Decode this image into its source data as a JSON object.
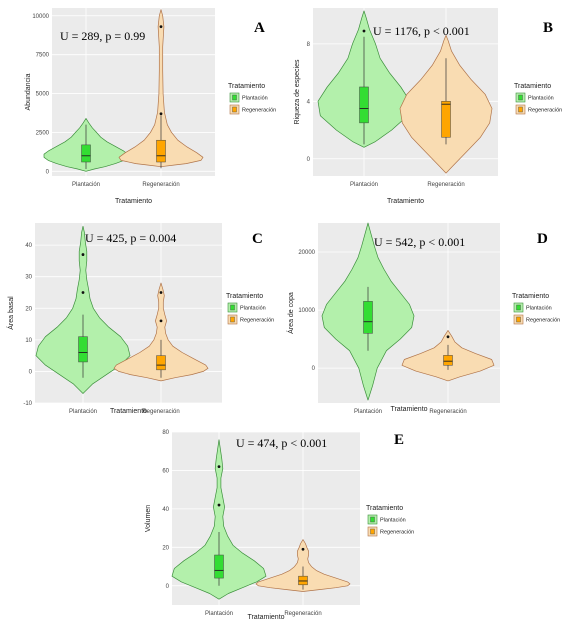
{
  "legend": {
    "title": "Tratamiento",
    "items": [
      "Plantación",
      "Regeneración"
    ]
  },
  "colors": {
    "plantacion": "#33dd33",
    "regeneracion": "#ffa500",
    "plantacion_fill": "#b3f0ab",
    "regeneracion_fill": "#f9dcb2",
    "panel_bg": "#ebebeb",
    "grid": "#ffffff"
  },
  "chart_data": [
    {
      "panel": "A",
      "type": "violin",
      "annotation": "U = 289, p = 0.99",
      "xlabel": "Tratamiento",
      "ylabel": "Abundancia",
      "categories": [
        "Plantación",
        "Regeneración"
      ],
      "yticks": [
        0,
        2500,
        5000,
        7500,
        10000
      ],
      "ylim": [
        -300,
        10500
      ],
      "series": [
        {
          "median": 1000,
          "q1": 600,
          "q3": 1700,
          "whisker": [
            150,
            3000
          ],
          "outliers": [],
          "violin_y": [
            0,
            150,
            300,
            500,
            700,
            900,
            1100,
            1300,
            1600,
            1900,
            2200,
            2500,
            2800,
            3100,
            3400
          ],
          "violin_d": [
            0,
            0.2,
            0.45,
            0.7,
            0.9,
            1.0,
            1.0,
            0.9,
            0.7,
            0.5,
            0.35,
            0.25,
            0.15,
            0.07,
            0
          ]
        },
        {
          "median": 1000,
          "q1": 600,
          "q3": 2000,
          "whisker": [
            200,
            3600
          ],
          "outliers": [
            9300,
            3700
          ],
          "violin_y": [
            300,
            400,
            500,
            700,
            900,
            1200,
            1600,
            2000,
            2500,
            3000,
            3800,
            5000,
            6500,
            8000,
            9300,
            10000,
            10400
          ],
          "violin_d": [
            0,
            0.3,
            0.6,
            0.95,
            1.0,
            0.85,
            0.6,
            0.4,
            0.25,
            0.15,
            0.08,
            0.05,
            0.04,
            0.04,
            0.07,
            0.04,
            0
          ]
        }
      ]
    },
    {
      "panel": "B",
      "type": "violin",
      "annotation": "U = 1176, p < 0.001",
      "xlabel": "Tratamiento",
      "ylabel": "Riqueza de especies",
      "categories": [
        "Plantación",
        "Regeneración"
      ],
      "yticks": [
        0,
        4,
        8
      ],
      "ylim": [
        -1.2,
        10.5
      ],
      "series": [
        {
          "median": 3.5,
          "q1": 2.5,
          "q3": 5.0,
          "whisker": [
            1,
            8.5
          ],
          "outliers": [
            8.9
          ],
          "violin_y": [
            0.8,
            1.2,
            2,
            3,
            4,
            5,
            6,
            7,
            8,
            9,
            9.8,
            10.3
          ],
          "violin_d": [
            0,
            0.25,
            0.6,
            0.95,
            1.0,
            0.8,
            0.55,
            0.35,
            0.25,
            0.12,
            0.05,
            0
          ]
        },
        {
          "median": 3.8,
          "q1": 1.5,
          "q3": 4.0,
          "whisker": [
            1,
            7
          ],
          "outliers": [],
          "violin_y": [
            -1,
            -0.5,
            0.5,
            1.5,
            2.5,
            3.5,
            4.5,
            5.5,
            6.5,
            7.5,
            8.2,
            8.6
          ],
          "violin_d": [
            0,
            0.15,
            0.45,
            0.75,
            0.95,
            1.0,
            0.85,
            0.55,
            0.3,
            0.12,
            0.05,
            0
          ]
        }
      ]
    },
    {
      "panel": "C",
      "type": "violin",
      "annotation": "U = 425, p = 0.004",
      "xlabel": "Tratamiento",
      "ylabel": "Área basal",
      "categories": [
        "Plantación",
        "Regeneración"
      ],
      "yticks": [
        -10,
        0,
        10,
        20,
        30,
        40
      ],
      "ylim": [
        -10,
        47
      ],
      "series": [
        {
          "median": 6,
          "q1": 3,
          "q3": 11,
          "whisker": [
            -2,
            18
          ],
          "outliers": [
            25,
            37
          ],
          "violin_y": [
            -7,
            -4,
            -1,
            2,
            5,
            8,
            11,
            14,
            17,
            20,
            23,
            26,
            29,
            32,
            35,
            38,
            41,
            44,
            46
          ],
          "violin_d": [
            0,
            0.2,
            0.5,
            0.8,
            1.0,
            0.95,
            0.8,
            0.55,
            0.35,
            0.22,
            0.15,
            0.12,
            0.08,
            0.06,
            0.08,
            0.08,
            0.05,
            0.03,
            0
          ]
        },
        {
          "median": 2,
          "q1": 0.5,
          "q3": 5,
          "whisker": [
            -2,
            10
          ],
          "outliers": [
            16,
            25
          ],
          "violin_y": [
            -3,
            -2,
            -1,
            0,
            1,
            2,
            4,
            6,
            8,
            10,
            12,
            14,
            16,
            18,
            20,
            22,
            24,
            26,
            28
          ],
          "violin_d": [
            0,
            0.3,
            0.65,
            0.9,
            1.0,
            0.95,
            0.7,
            0.45,
            0.25,
            0.15,
            0.1,
            0.08,
            0.12,
            0.08,
            0.05,
            0.05,
            0.07,
            0.04,
            0
          ]
        }
      ]
    },
    {
      "panel": "D",
      "type": "violin",
      "annotation": "U = 542, p < 0.001",
      "xlabel": "Tratamiento",
      "ylabel": "Área de copa",
      "categories": [
        "Plantación",
        "Regeneración"
      ],
      "ytick_labels": [
        "0",
        "10000",
        "20000"
      ],
      "ylim": [
        -6000,
        25000
      ],
      "series": [
        {
          "median": 8000,
          "q1": 6000,
          "q3": 11500,
          "whisker": [
            3000,
            14000
          ],
          "outliers": [],
          "violin_y": [
            -5500,
            -3000,
            0,
            3000,
            5000,
            7000,
            9000,
            11000,
            13000,
            15000,
            17000,
            19000,
            21000,
            23000,
            25000
          ],
          "violin_d": [
            0,
            0.1,
            0.2,
            0.4,
            0.7,
            0.95,
            1.0,
            0.9,
            0.7,
            0.5,
            0.35,
            0.22,
            0.14,
            0.07,
            0
          ]
        },
        {
          "median": 1200,
          "q1": 500,
          "q3": 2200,
          "whisker": [
            -300,
            4000
          ],
          "outliers": [
            5400
          ],
          "violin_y": [
            -2200,
            -1500,
            -500,
            500,
            1500,
            2500,
            3500,
            4500,
            5500,
            6500
          ],
          "violin_d": [
            0,
            0.25,
            0.7,
            1.0,
            0.95,
            0.6,
            0.3,
            0.15,
            0.08,
            0
          ]
        }
      ]
    },
    {
      "panel": "E",
      "type": "violin",
      "annotation": "U = 474, p < 0.001",
      "xlabel": "Tratamiento",
      "ylabel": "Volumen",
      "categories": [
        "Plantación",
        "Regeneración"
      ],
      "yticks": [
        0,
        20,
        40,
        60,
        80
      ],
      "ylim": [
        -10,
        80
      ],
      "series": [
        {
          "median": 8,
          "q1": 4,
          "q3": 16,
          "whisker": [
            0,
            28
          ],
          "outliers": [
            42,
            62
          ],
          "violin_y": [
            -7,
            -4,
            -1,
            2,
            5,
            9,
            13,
            17,
            21,
            26,
            31,
            36,
            41,
            46,
            51,
            56,
            61,
            66,
            71,
            76
          ],
          "violin_d": [
            0,
            0.2,
            0.5,
            0.8,
            1.0,
            0.95,
            0.75,
            0.5,
            0.3,
            0.18,
            0.1,
            0.08,
            0.12,
            0.08,
            0.04,
            0.04,
            0.08,
            0.06,
            0.03,
            0
          ]
        },
        {
          "median": 2.5,
          "q1": 0.5,
          "q3": 5,
          "whisker": [
            -2,
            10
          ],
          "outliers": [
            19
          ],
          "violin_y": [
            -3,
            -2,
            -1,
            0,
            1,
            2,
            4,
            6,
            8,
            10,
            12,
            14,
            16,
            18,
            20,
            22,
            24
          ],
          "violin_d": [
            0,
            0.35,
            0.7,
            0.95,
            1.0,
            0.95,
            0.7,
            0.45,
            0.28,
            0.18,
            0.12,
            0.1,
            0.12,
            0.12,
            0.08,
            0.05,
            0
          ]
        }
      ]
    }
  ]
}
